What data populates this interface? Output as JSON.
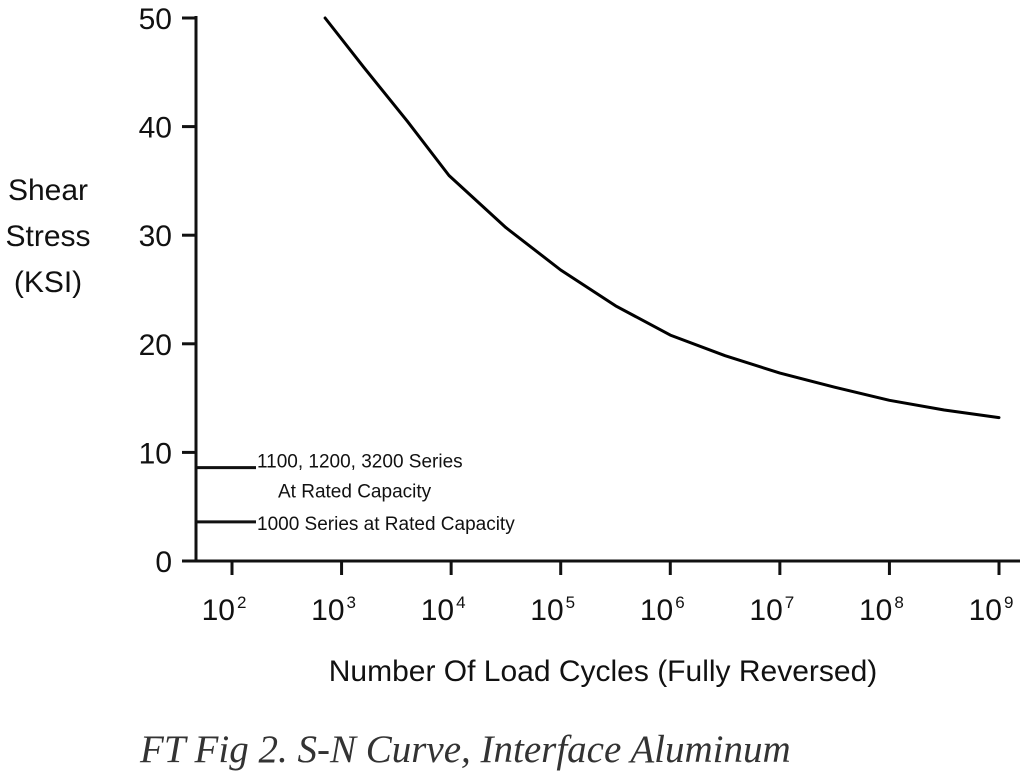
{
  "chart_data": {
    "type": "line",
    "title": "",
    "caption": "FT Fig 2. S-N Curve, Interface Aluminum",
    "ylabel_lines": [
      "Shear",
      "Stress",
      "(KSI)"
    ],
    "xlabel": "Number Of Load Cycles (Fully Reversed)",
    "x_scale": "log",
    "xlim_exponents": [
      1.7,
      9.0
    ],
    "ylim": [
      0,
      50
    ],
    "y_ticks": [
      0,
      10,
      20,
      30,
      40,
      50
    ],
    "x_ticks": [
      {
        "base": "10",
        "exp": "2"
      },
      {
        "base": "10",
        "exp": "3"
      },
      {
        "base": "10",
        "exp": "4"
      },
      {
        "base": "10",
        "exp": "5"
      },
      {
        "base": "10",
        "exp": "6"
      },
      {
        "base": "10",
        "exp": "7"
      },
      {
        "base": "10",
        "exp": "8"
      },
      {
        "base": "10",
        "exp": "9"
      }
    ],
    "series": [
      {
        "name": "S-N Curve, Interface Aluminum",
        "color": "#000000",
        "log10_cycles": [
          2.85,
          3.2,
          3.6,
          3.98,
          4.5,
          5.0,
          5.5,
          6.0,
          6.5,
          7.0,
          7.5,
          8.0,
          8.5,
          9.0
        ],
        "stress_ksi": [
          50,
          45.5,
          40.5,
          35.5,
          30.7,
          26.8,
          23.5,
          20.8,
          18.9,
          17.3,
          16.0,
          14.8,
          13.9,
          13.2
        ]
      }
    ],
    "reference_lines": [
      {
        "stress_ksi": 8.6,
        "from_exp": 1.7,
        "to_exp": 2.2,
        "label_lines": [
          "1100, 1200, 3200 Series",
          "At Rated Capacity"
        ]
      },
      {
        "stress_ksi": 3.6,
        "from_exp": 1.7,
        "to_exp": 2.2,
        "label_lines": [
          "1000 Series at Rated Capacity"
        ]
      }
    ]
  }
}
